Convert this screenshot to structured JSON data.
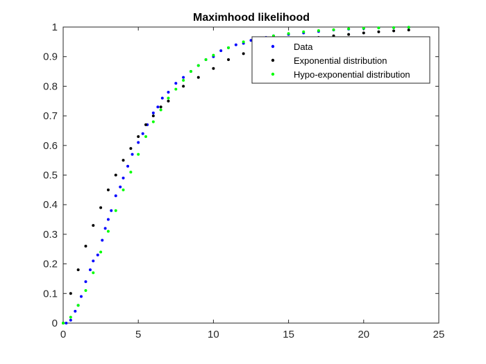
{
  "chart_data": {
    "type": "scatter",
    "title": "Maximhood likelihood",
    "xlabel": "",
    "ylabel": "",
    "xlim": [
      0,
      25
    ],
    "ylim": [
      0,
      1
    ],
    "xticks": [
      0,
      5,
      10,
      15,
      20,
      25
    ],
    "yticks": [
      0,
      0.1,
      0.2,
      0.3,
      0.4,
      0.5,
      0.6,
      0.7,
      0.8,
      0.9,
      1
    ],
    "grid": false,
    "legend_position": "top-right",
    "series": [
      {
        "name": "Data",
        "color": "#0000ff",
        "points": [
          [
            0.2,
            0.0
          ],
          [
            0.5,
            0.01
          ],
          [
            0.8,
            0.04
          ],
          [
            1.0,
            0.06
          ],
          [
            1.2,
            0.09
          ],
          [
            1.5,
            0.14
          ],
          [
            1.8,
            0.18
          ],
          [
            2.0,
            0.21
          ],
          [
            2.3,
            0.23
          ],
          [
            2.6,
            0.28
          ],
          [
            2.8,
            0.32
          ],
          [
            3.0,
            0.35
          ],
          [
            3.2,
            0.38
          ],
          [
            3.5,
            0.43
          ],
          [
            3.8,
            0.46
          ],
          [
            4.0,
            0.49
          ],
          [
            4.3,
            0.53
          ],
          [
            4.6,
            0.57
          ],
          [
            5.0,
            0.61
          ],
          [
            5.3,
            0.64
          ],
          [
            5.6,
            0.67
          ],
          [
            6.0,
            0.71
          ],
          [
            6.3,
            0.73
          ],
          [
            6.6,
            0.76
          ],
          [
            7.0,
            0.78
          ],
          [
            7.5,
            0.81
          ],
          [
            8.0,
            0.83
          ],
          [
            8.5,
            0.85
          ],
          [
            9.0,
            0.87
          ],
          [
            9.5,
            0.89
          ],
          [
            10.0,
            0.9
          ],
          [
            10.5,
            0.92
          ],
          [
            11.0,
            0.93
          ],
          [
            11.5,
            0.94
          ],
          [
            12.0,
            0.945
          ],
          [
            12.5,
            0.955
          ],
          [
            13.0,
            0.96
          ],
          [
            13.5,
            0.965
          ],
          [
            14.0,
            0.97
          ],
          [
            15.0,
            0.975
          ],
          [
            16.0,
            0.98
          ],
          [
            17.0,
            0.985
          ],
          [
            18.0,
            0.99
          ],
          [
            19.0,
            0.993
          ],
          [
            20.0,
            0.995
          ],
          [
            21.0,
            0.997
          ],
          [
            22.0,
            0.998
          ],
          [
            23.0,
            0.999
          ]
        ]
      },
      {
        "name": "Exponential distribution",
        "color": "#000000",
        "points": [
          [
            0.0,
            0.0
          ],
          [
            0.5,
            0.1
          ],
          [
            1.0,
            0.18
          ],
          [
            1.5,
            0.26
          ],
          [
            2.0,
            0.33
          ],
          [
            2.5,
            0.39
          ],
          [
            3.0,
            0.45
          ],
          [
            3.5,
            0.5
          ],
          [
            4.0,
            0.55
          ],
          [
            4.5,
            0.59
          ],
          [
            5.0,
            0.63
          ],
          [
            5.5,
            0.67
          ],
          [
            6.0,
            0.7
          ],
          [
            6.5,
            0.73
          ],
          [
            7.0,
            0.75
          ],
          [
            8.0,
            0.8
          ],
          [
            9.0,
            0.83
          ],
          [
            10.0,
            0.86
          ],
          [
            11.0,
            0.89
          ],
          [
            12.0,
            0.91
          ],
          [
            13.0,
            0.92
          ],
          [
            14.0,
            0.94
          ],
          [
            15.0,
            0.95
          ],
          [
            16.0,
            0.96
          ],
          [
            17.0,
            0.965
          ],
          [
            18.0,
            0.97
          ],
          [
            19.0,
            0.975
          ],
          [
            20.0,
            0.98
          ],
          [
            21.0,
            0.984
          ],
          [
            22.0,
            0.987
          ],
          [
            23.0,
            0.99
          ]
        ]
      },
      {
        "name": "Hypo-exponential distribution",
        "color": "#00ff00",
        "points": [
          [
            0.0,
            0.0
          ],
          [
            0.5,
            0.02
          ],
          [
            1.0,
            0.06
          ],
          [
            1.5,
            0.11
          ],
          [
            2.0,
            0.17
          ],
          [
            2.5,
            0.24
          ],
          [
            3.0,
            0.31
          ],
          [
            3.5,
            0.38
          ],
          [
            4.0,
            0.45
          ],
          [
            4.5,
            0.51
          ],
          [
            5.0,
            0.57
          ],
          [
            5.5,
            0.63
          ],
          [
            6.0,
            0.68
          ],
          [
            6.5,
            0.72
          ],
          [
            7.0,
            0.76
          ],
          [
            7.5,
            0.79
          ],
          [
            8.0,
            0.82
          ],
          [
            8.5,
            0.85
          ],
          [
            9.0,
            0.87
          ],
          [
            9.5,
            0.89
          ],
          [
            10.0,
            0.905
          ],
          [
            11.0,
            0.93
          ],
          [
            12.0,
            0.95
          ],
          [
            13.0,
            0.96
          ],
          [
            14.0,
            0.97
          ],
          [
            15.0,
            0.978
          ],
          [
            16.0,
            0.984
          ],
          [
            17.0,
            0.988
          ],
          [
            18.0,
            0.991
          ],
          [
            19.0,
            0.994
          ],
          [
            20.0,
            0.996
          ],
          [
            21.0,
            0.997
          ],
          [
            22.0,
            0.998
          ],
          [
            23.0,
            0.999
          ]
        ]
      }
    ]
  }
}
